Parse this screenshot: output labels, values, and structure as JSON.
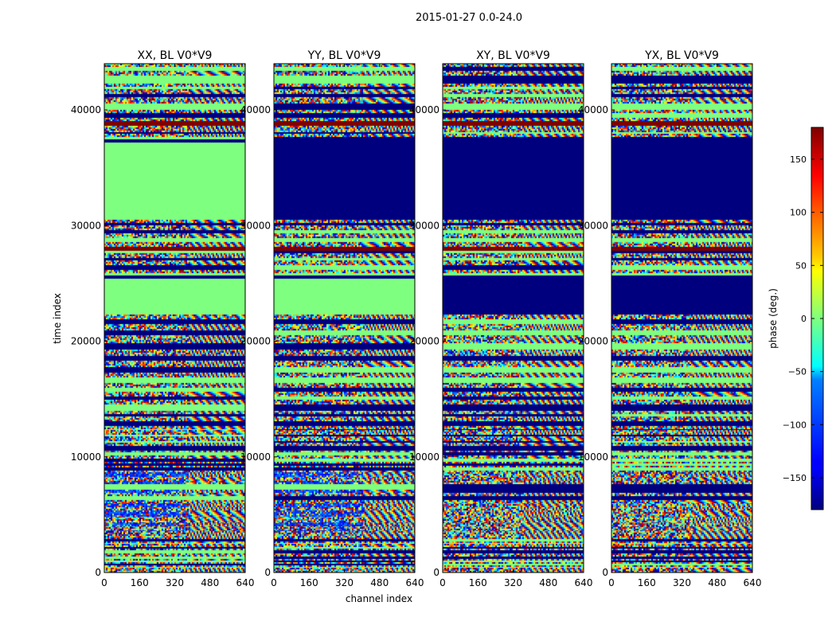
{
  "figure": {
    "suptitle": "2015-01-27 0.0-24.0"
  },
  "chart_data": {
    "type": "heatmap",
    "xlabel": "channel index",
    "ylabel": "time index",
    "xlim": [
      0,
      640
    ],
    "ylim": [
      0,
      44000
    ],
    "xticks": [
      0,
      160,
      320,
      480,
      640
    ],
    "yticks": [
      0,
      10000,
      20000,
      30000,
      40000
    ],
    "colormap": "jet",
    "colorbar": {
      "label": "phase (deg.)",
      "range": [
        -180,
        180
      ],
      "ticks": [
        -150,
        -100,
        -50,
        0,
        50,
        100,
        150
      ],
      "tick_labels": [
        "−150",
        "−100",
        "−50",
        "0",
        "50",
        "100",
        "150"
      ]
    },
    "panels": [
      {
        "title": "XX, BL V0*V9",
        "band_edges": [
          0,
          420,
          560,
          650,
          750,
          920,
          1000,
          1200,
          1420,
          1620,
          1900,
          2050,
          2250,
          2450,
          2550,
          2700,
          2900,
          3550,
          3750,
          4050,
          4400,
          4900,
          5350,
          5650,
          6050,
          6300,
          6600,
          6900,
          7150,
          7650,
          7950,
          8350,
          8650,
          8800,
          9100,
          9250,
          9450,
          9600,
          9900,
          10150,
          10400,
          10550,
          10950,
          11200,
          11400,
          11800,
          12000,
          12300,
          12400,
          12700,
          13100,
          13500,
          13700,
          14000,
          14500,
          14950,
          15300,
          15600,
          15950,
          16400,
          16900,
          17300,
          17800,
          18350,
          18800,
          19300,
          19800,
          20500,
          21000,
          21500,
          22000,
          22300,
          25400,
          25700,
          25950,
          26200,
          26600,
          27000,
          27300,
          27600,
          27800,
          28200,
          28600,
          29000,
          29300,
          29700,
          30000,
          30300,
          30500,
          37200,
          37450,
          37700,
          37950,
          38100,
          38600,
          39100,
          39300,
          39700,
          40000,
          40600,
          41100,
          41400,
          41800,
          42100,
          42300,
          43000,
          43400,
          43700,
          44000
        ],
        "bands": [
          "v",
          "n",
          "v",
          "n",
          "v",
          "n",
          "v",
          "n",
          "v",
          "n",
          "v",
          "n",
          "v",
          "n",
          "v",
          "n",
          "v",
          "b",
          "v",
          "b",
          "v",
          "b",
          "v",
          "b",
          "v",
          "n",
          "v",
          "b",
          "n",
          "b",
          "v",
          "b",
          "v",
          "n",
          "v",
          "n",
          "v",
          "n",
          "v",
          "n",
          "v",
          "n",
          "v",
          "n",
          "v",
          "n",
          "v",
          "n",
          "v",
          "n",
          "v",
          "n",
          "v",
          "n",
          "v",
          "n",
          "v",
          "n",
          "v",
          "n",
          "v",
          "n",
          "v",
          "n",
          "v",
          "n",
          "v",
          "n",
          "v",
          "n",
          "v",
          "n",
          "B",
          "n",
          "v",
          "n",
          "v",
          "n",
          "v",
          "n",
          "r",
          "v",
          "n",
          "v",
          "n",
          "v",
          "n",
          "v",
          "n",
          "B",
          "n",
          "v",
          "n",
          "v",
          "r",
          "v",
          "n",
          "v",
          "n",
          "v",
          "n",
          "v",
          "n",
          "v",
          "n",
          "v",
          "n",
          "v"
        ],
        "fringe_start": 380
      },
      {
        "title": "YY, BL V0*V9",
        "band_edges": [
          0,
          420,
          560,
          650,
          750,
          920,
          1000,
          1200,
          1420,
          1620,
          1900,
          2050,
          2250,
          2450,
          2550,
          2700,
          2900,
          3550,
          3750,
          4050,
          4400,
          4900,
          5350,
          5650,
          6050,
          6300,
          6600,
          6900,
          7150,
          7650,
          7950,
          8350,
          8650,
          8800,
          9100,
          9250,
          9450,
          9600,
          9900,
          10150,
          10400,
          10550,
          10950,
          11200,
          11400,
          11800,
          12000,
          12300,
          12400,
          12700,
          13100,
          13500,
          13700,
          14000,
          14500,
          14950,
          15300,
          15600,
          15950,
          16400,
          16900,
          17300,
          17800,
          18350,
          18800,
          19300,
          19800,
          20500,
          21000,
          21500,
          22000,
          22300,
          25400,
          25700,
          25950,
          26200,
          26600,
          27000,
          27300,
          27600,
          27800,
          28200,
          28600,
          29000,
          29300,
          29700,
          30000,
          30300,
          30500,
          37200,
          37450,
          37700,
          37950,
          38100,
          38600,
          39100,
          39300,
          39700,
          40000,
          40600,
          41100,
          41400,
          41800,
          42100,
          42300,
          43000,
          43400,
          43700,
          44000
        ],
        "bands": [
          "v",
          "n",
          "v",
          "n",
          "v",
          "n",
          "v",
          "n",
          "v",
          "n",
          "v",
          "n",
          "v",
          "n",
          "v",
          "n",
          "v",
          "b",
          "v",
          "b",
          "v",
          "b",
          "v",
          "b",
          "v",
          "n",
          "v",
          "b",
          "n",
          "b",
          "v",
          "b",
          "v",
          "n",
          "v",
          "n",
          "v",
          "n",
          "v",
          "n",
          "v",
          "n",
          "v",
          "n",
          "v",
          "n",
          "v",
          "n",
          "v",
          "n",
          "v",
          "n",
          "v",
          "n",
          "v",
          "n",
          "v",
          "n",
          "v",
          "n",
          "v",
          "n",
          "v",
          "n",
          "v",
          "n",
          "v",
          "n",
          "v",
          "n",
          "v",
          "n",
          "B",
          "n",
          "v",
          "n",
          "v",
          "n",
          "v",
          "n",
          "r",
          "v",
          "n",
          "v",
          "n",
          "v",
          "n",
          "v",
          "n",
          "B",
          "n",
          "v",
          "n",
          "v",
          "r",
          "v",
          "n",
          "v",
          "n",
          "v",
          "n",
          "v",
          "n",
          "v",
          "n",
          "v",
          "n",
          "v"
        ],
        "fringe_start": 400
      },
      {
        "title": "XY, BL V0*V9",
        "band_edges": [
          0,
          420,
          560,
          650,
          750,
          920,
          1000,
          1200,
          1420,
          1620,
          1900,
          2050,
          2250,
          2450,
          2550,
          2700,
          2900,
          3550,
          3750,
          4050,
          4400,
          4900,
          5350,
          5650,
          6050,
          6300,
          6600,
          6900,
          7150,
          7650,
          7950,
          8350,
          8650,
          8800,
          9100,
          9250,
          9450,
          9600,
          9900,
          10150,
          10400,
          10550,
          10950,
          11200,
          11400,
          11800,
          12000,
          12300,
          12400,
          12700,
          13100,
          13500,
          13700,
          14000,
          14500,
          14950,
          15300,
          15600,
          15950,
          16400,
          16900,
          17300,
          17800,
          18350,
          18800,
          19300,
          19800,
          20500,
          21000,
          21500,
          22000,
          22300,
          25400,
          25700,
          25950,
          26200,
          26600,
          27000,
          27300,
          27600,
          27800,
          28200,
          28600,
          29000,
          29300,
          29700,
          30000,
          30300,
          30500,
          37200,
          37450,
          37700,
          37950,
          38100,
          38600,
          39100,
          39300,
          39700,
          40000,
          40600,
          41100,
          41400,
          41800,
          42100,
          42300,
          43000,
          43400,
          43700,
          44000
        ],
        "bands": [
          "v",
          "n",
          "v",
          "n",
          "v",
          "n",
          "v",
          "n",
          "v",
          "n",
          "v",
          "n",
          "v",
          "n",
          "v",
          "n",
          "v",
          "v",
          "v",
          "v",
          "v",
          "v",
          "v",
          "v",
          "v",
          "n",
          "v",
          "B",
          "n",
          "v",
          "v",
          "v",
          "v",
          "n",
          "v",
          "n",
          "v",
          "n",
          "v",
          "n",
          "v",
          "n",
          "v",
          "n",
          "v",
          "n",
          "v",
          "n",
          "v",
          "n",
          "v",
          "n",
          "v",
          "n",
          "v",
          "n",
          "v",
          "n",
          "v",
          "n",
          "v",
          "n",
          "v",
          "n",
          "v",
          "n",
          "v",
          "n",
          "v",
          "n",
          "v",
          "n",
          "B",
          "n",
          "v",
          "n",
          "v",
          "n",
          "v",
          "n",
          "r",
          "v",
          "n",
          "v",
          "n",
          "v",
          "n",
          "v",
          "n",
          "B",
          "n",
          "v",
          "n",
          "v",
          "r",
          "v",
          "n",
          "v",
          "n",
          "v",
          "n",
          "v",
          "n",
          "v",
          "n",
          "v",
          "n",
          "v"
        ],
        "fringe_start": 360
      },
      {
        "title": "YX, BL V0*V9",
        "band_edges": [
          0,
          420,
          560,
          650,
          750,
          920,
          1000,
          1200,
          1420,
          1620,
          1900,
          2050,
          2250,
          2450,
          2550,
          2700,
          2900,
          3550,
          3750,
          4050,
          4400,
          4900,
          5350,
          5650,
          6050,
          6300,
          6600,
          6900,
          7150,
          7650,
          7950,
          8350,
          8650,
          8800,
          9100,
          9250,
          9450,
          9600,
          9900,
          10150,
          10400,
          10550,
          10950,
          11200,
          11400,
          11800,
          12000,
          12300,
          12400,
          12700,
          13100,
          13500,
          13700,
          14000,
          14500,
          14950,
          15300,
          15600,
          15950,
          16400,
          16900,
          17300,
          17800,
          18350,
          18800,
          19300,
          19800,
          20500,
          21000,
          21500,
          22000,
          22300,
          25400,
          25700,
          25950,
          26200,
          26600,
          27000,
          27300,
          27600,
          27800,
          28200,
          28600,
          29000,
          29300,
          29700,
          30000,
          30300,
          30500,
          37200,
          37450,
          37700,
          37950,
          38100,
          38600,
          39100,
          39300,
          39700,
          40000,
          40600,
          41100,
          41400,
          41800,
          42100,
          42300,
          43000,
          43400,
          43700,
          44000
        ],
        "bands": [
          "v",
          "n",
          "v",
          "n",
          "v",
          "n",
          "v",
          "n",
          "v",
          "n",
          "v",
          "n",
          "v",
          "n",
          "v",
          "n",
          "v",
          "v",
          "v",
          "v",
          "v",
          "v",
          "v",
          "v",
          "v",
          "n",
          "v",
          "B",
          "n",
          "v",
          "v",
          "v",
          "v",
          "n",
          "v",
          "n",
          "v",
          "n",
          "v",
          "n",
          "v",
          "n",
          "v",
          "n",
          "v",
          "n",
          "v",
          "n",
          "v",
          "n",
          "v",
          "n",
          "v",
          "n",
          "v",
          "n",
          "v",
          "n",
          "v",
          "n",
          "v",
          "n",
          "v",
          "n",
          "v",
          "n",
          "v",
          "n",
          "v",
          "n",
          "v",
          "n",
          "B",
          "n",
          "v",
          "n",
          "v",
          "n",
          "v",
          "n",
          "r",
          "v",
          "n",
          "v",
          "n",
          "v",
          "n",
          "v",
          "n",
          "B",
          "n",
          "v",
          "n",
          "v",
          "r",
          "v",
          "n",
          "v",
          "n",
          "v",
          "n",
          "v",
          "n",
          "v",
          "n",
          "v",
          "n",
          "v"
        ],
        "fringe_start": 360
      }
    ]
  }
}
